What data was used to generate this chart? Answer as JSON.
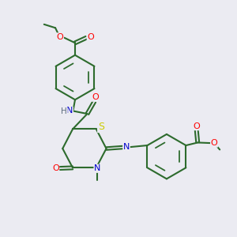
{
  "background_color": "#ebebf2",
  "bond_color": "#2d6b2d",
  "atom_colors": {
    "O": "#ff0000",
    "N": "#0000cc",
    "S": "#cccc00",
    "H": "#607080",
    "C": "#2d6b2d"
  },
  "figsize": [
    3.0,
    3.0
  ],
  "dpi": 100
}
